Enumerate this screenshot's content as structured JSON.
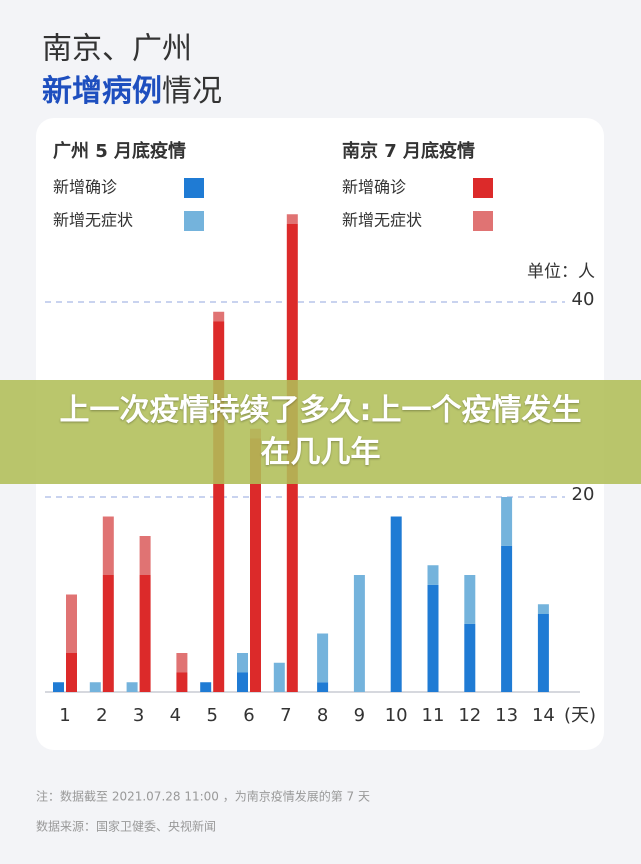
{
  "chart_data": {
    "type": "bar",
    "title": "南京、广州",
    "subtitle_highlight": "新增病例",
    "subtitle_rest": "情况",
    "unit": "单位：人",
    "x_unit": "(天)",
    "categories": [
      "1",
      "2",
      "3",
      "4",
      "5",
      "6",
      "7",
      "8",
      "9",
      "10",
      "11",
      "12",
      "13",
      "14"
    ],
    "groups": [
      "广州 5 月底疫情",
      "南京 7 月底疫情"
    ],
    "series": [
      {
        "name": "新增确诊",
        "group": "广州 5 月底疫情",
        "color": "#1f7bd4",
        "values": [
          1,
          0,
          0,
          0,
          1,
          2,
          0,
          1,
          0,
          18,
          11,
          7,
          15,
          8
        ]
      },
      {
        "name": "新增无症状",
        "group": "广州 5 月底疫情",
        "color": "#74b3dc",
        "values": [
          0,
          1,
          1,
          0,
          0,
          2,
          3,
          5,
          12,
          0,
          2,
          5,
          5,
          1
        ]
      },
      {
        "name": "新增确诊",
        "group": "南京 7 月底疫情",
        "color": "#dc2a2a",
        "values": [
          4,
          12,
          12,
          2,
          38,
          26,
          48,
          null,
          null,
          null,
          null,
          null,
          null,
          null
        ]
      },
      {
        "name": "新增无症状",
        "group": "南京 7 月底疫情",
        "color": "#e07373",
        "values": [
          6,
          6,
          4,
          2,
          1,
          1,
          1,
          null,
          null,
          null,
          null,
          null,
          null,
          null
        ]
      }
    ],
    "ylim": [
      0,
      50
    ],
    "yticks": [
      20,
      40
    ],
    "grid": true,
    "notes": [
      "注：数据截至 2021.07.28 11:00 ，为南京疫情发展的第 7 天",
      "数据来源：国家卫健委、央视新闻"
    ],
    "banner": "上一次疫情持续了多久:上一个疫情发生在几几年"
  }
}
